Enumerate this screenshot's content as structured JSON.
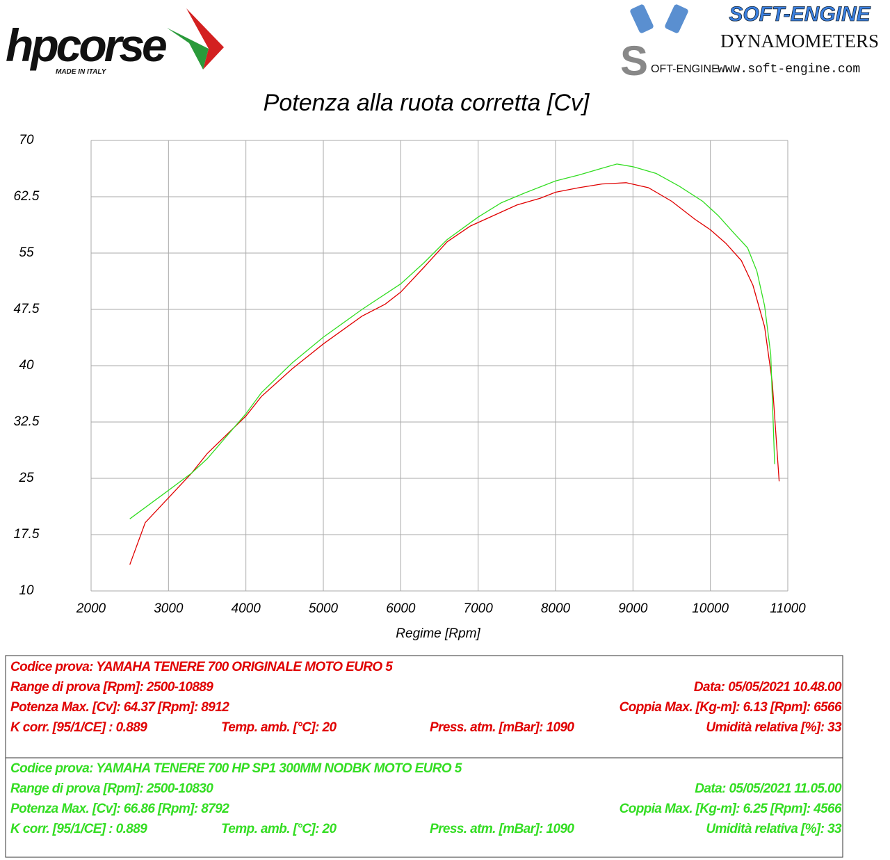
{
  "header": {
    "logo_left": "hpcorse",
    "logo_left_sub": "MADE IN ITALY",
    "logo_right_title": "SOFT-ENGINE",
    "logo_right_mark": "S",
    "logo_right_mark_text": "OFT-ENGINE",
    "logo_right_sub": "DYNAMOMETERS",
    "logo_right_url": "www.soft-engine.com"
  },
  "chart_data": {
    "type": "line",
    "title": "Potenza alla ruota corretta [Cv]",
    "x_label": "Regime [Rpm]",
    "xlim": [
      2000,
      11000
    ],
    "xticks": [
      2000,
      3000,
      4000,
      5000,
      6000,
      7000,
      8000,
      9000,
      10000,
      11000
    ],
    "ylim": [
      10,
      70
    ],
    "yticks": [
      10,
      17.5,
      25,
      32.5,
      40,
      47.5,
      55,
      62.5,
      70
    ],
    "grid": true,
    "series": [
      {
        "color": "#e00000",
        "x": [
          2500,
          2700,
          3000,
          3300,
          3500,
          4000,
          4200,
          4600,
          5000,
          5500,
          5800,
          6000,
          6300,
          6600,
          6900,
          7200,
          7500,
          7800,
          8000,
          8300,
          8600,
          8912,
          9200,
          9500,
          9800,
          10000,
          10200,
          10400,
          10550,
          10700,
          10800,
          10889
        ],
        "values": [
          13.5,
          19.1,
          22.4,
          25.7,
          28.3,
          33.3,
          35.9,
          39.6,
          42.9,
          46.6,
          48.2,
          49.8,
          53.1,
          56.5,
          58.6,
          60.0,
          61.4,
          62.3,
          63.1,
          63.7,
          64.2,
          64.37,
          63.7,
          61.9,
          59.5,
          58.1,
          56.3,
          54.0,
          50.7,
          45.2,
          37.8,
          24.6
        ]
      },
      {
        "color": "#33dd22",
        "x": [
          2500,
          3000,
          3300,
          3500,
          4000,
          4200,
          4600,
          5000,
          5500,
          6000,
          6300,
          6600,
          7000,
          7300,
          7600,
          8000,
          8300,
          8600,
          8792,
          9000,
          9300,
          9600,
          9900,
          10100,
          10300,
          10480,
          10600,
          10700,
          10780,
          10830
        ],
        "values": [
          19.6,
          23.4,
          25.7,
          27.6,
          33.6,
          36.4,
          40.4,
          43.8,
          47.5,
          50.9,
          53.7,
          56.8,
          59.8,
          61.7,
          63.0,
          64.6,
          65.4,
          66.3,
          66.86,
          66.5,
          65.6,
          63.9,
          61.9,
          60.0,
          57.7,
          55.7,
          52.6,
          48.0,
          41.5,
          26.9
        ]
      }
    ]
  },
  "tests": [
    {
      "color": "#e00000",
      "rows": [
        [
          "Codice prova: YAMAHA TENERE 700 ORIGINALE  MOTO EURO 5"
        ],
        [
          "Range di prova [Rpm]: 2500-10889",
          "Data: 05/05/2021   10.48.00"
        ],
        [
          "Potenza Max. [Cv]: 64.37   [Rpm]: 8912",
          "Coppia Max. [Kg-m]: 6.13   [Rpm]: 6566"
        ],
        [
          "K corr. [95/1/CE] : 0.889",
          "Temp. amb. [°C]: 20",
          "Press. atm. [mBar]: 1090",
          "Umidità relativa [%]: 33"
        ]
      ]
    },
    {
      "color": "#33dd22",
      "rows": [
        [
          "Codice prova: YAMAHA TENERE 700 HP SP1 300MM NODBK  MOTO EURO 5"
        ],
        [
          "Range di prova [Rpm]: 2500-10830",
          "Data: 05/05/2021   11.05.00"
        ],
        [
          "Potenza Max. [Cv]: 66.86   [Rpm]: 8792",
          "Coppia Max. [Kg-m]: 6.25   [Rpm]: 4566"
        ],
        [
          "K corr. [95/1/CE] : 0.889",
          "Temp. amb. [°C]: 20",
          "Press. atm. [mBar]: 1090",
          "Umidità relativa [%]: 33"
        ]
      ]
    }
  ]
}
